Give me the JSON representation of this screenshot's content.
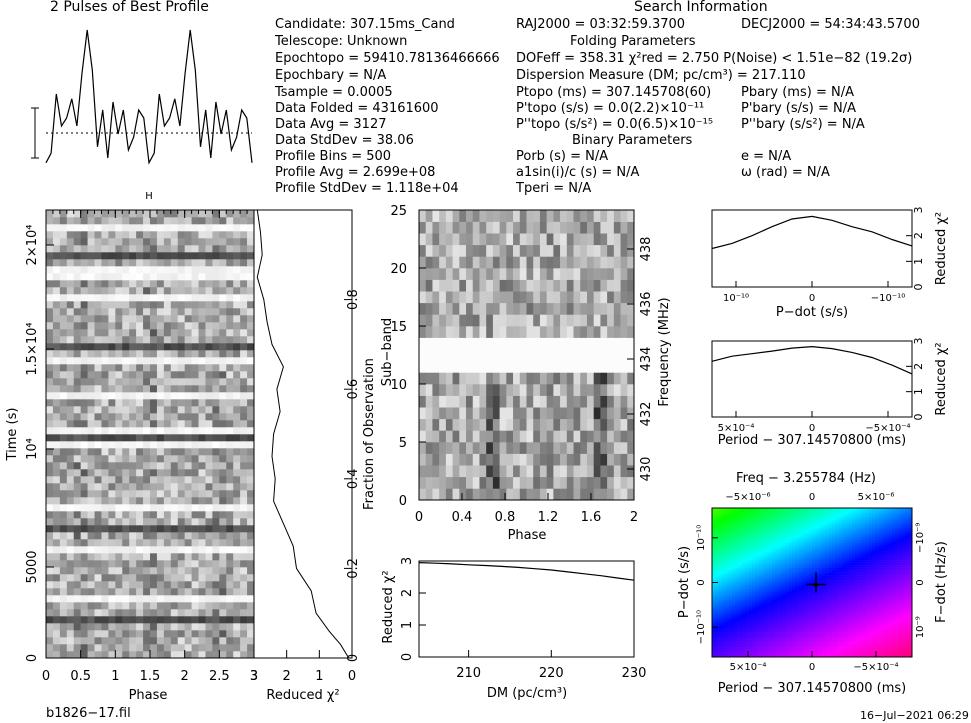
{
  "header": {
    "profile_title": "2 Pulses of Best Profile",
    "search_title": "Search Information"
  },
  "info": {
    "candidate": "Candidate:  307.15ms_Cand",
    "telescope": "Telescope:  Unknown",
    "epoch_topo": "Epochtopo = 59410.78136466666",
    "epoch_bary": "Epochbary = N/A",
    "tsample": "Tsample       =  0.0005",
    "data_folded": "Data Folded   =  43161600",
    "data_avg": "Data Avg      =  3127",
    "data_stddev": "Data StdDev   =  38.06",
    "profile_bins": "Profile Bins  =  500",
    "profile_avg": "Profile Avg   =  2.699e+08",
    "profile_stddev": "Profile StdDev =  1.118e+04",
    "ra": "RAJ2000 = 03:32:59.3700",
    "dec": "DECJ2000 = 54:34:43.5700",
    "folding_title": "Folding Parameters",
    "dof_line": "DOFeff = 358.31  χ²red = 2.750  P(Noise) < 1.51e−82  (19.2σ)",
    "dm_line": "Dispersion Measure (DM; pc/cm³) = 217.110",
    "ptopo": "Ptopo (ms)  =  307.145708(60)",
    "pdtopo": "P'topo (s/s) = 0.0(2.2)×10⁻¹¹",
    "pddtopo": "P''topo (s/s²) = 0.0(6.5)×10⁻¹⁵",
    "pbary": "Pbary (ms) = N/A",
    "pdbary": "P'bary (s/s) = N/A",
    "pddbary": "P''bary (s/s²) = N/A",
    "binary_title": "Binary Parameters",
    "porb": "Porb (s) = N/A",
    "asini": "a1sin(i)/c (s) = N/A",
    "tperi": "Tperi = N/A",
    "ecc": "e = N/A",
    "omega": "ω (rad) = N/A"
  },
  "footer": {
    "filename": "b1826−17.fil",
    "date": "16−Jul−2021 06:29"
  },
  "chart_data": [
    {
      "type": "line",
      "name": "profile",
      "title": "2 Pulses of Best Profile",
      "xlabel": "",
      "ylabel": "",
      "x": [
        0,
        0.05,
        0.1,
        0.15,
        0.2,
        0.25,
        0.3,
        0.35,
        0.4,
        0.45,
        0.5,
        0.55,
        0.6,
        0.65,
        0.7,
        0.75,
        0.8,
        0.85,
        0.9,
        0.95,
        1.0,
        1.05,
        1.1,
        1.15,
        1.2,
        1.25,
        1.3,
        1.35,
        1.4,
        1.45,
        1.5,
        1.55,
        1.6,
        1.65,
        1.7,
        1.75,
        1.8,
        1.85,
        1.9,
        1.95,
        2.0
      ],
      "values": [
        0.12,
        0.18,
        0.55,
        0.35,
        0.4,
        0.52,
        0.35,
        0.68,
        0.95,
        0.7,
        0.22,
        0.45,
        0.15,
        0.5,
        0.3,
        0.45,
        0.2,
        0.28,
        0.45,
        0.4,
        0.12,
        0.18,
        0.55,
        0.35,
        0.4,
        0.52,
        0.35,
        0.68,
        0.95,
        0.7,
        0.22,
        0.45,
        0.15,
        0.5,
        0.3,
        0.45,
        0.2,
        0.28,
        0.45,
        0.4,
        0.12
      ]
    },
    {
      "type": "heatmap",
      "name": "time-phase",
      "xlabel": "Phase",
      "ylabel": "Time (s)",
      "xlim": [
        0,
        3
      ],
      "x_ticks": [
        "0",
        "0.5",
        "1",
        "1.5",
        "2",
        "2.5",
        "3"
      ],
      "y_ticks": [
        "0",
        "5000",
        "10⁴",
        "1.5×10⁴",
        "2×10⁴"
      ],
      "y_tick_values": [
        0,
        5000,
        10000,
        15000,
        20000
      ],
      "ylim": [
        0,
        22500
      ],
      "bright_rows_frac": [
        0.12,
        0.24,
        0.33,
        0.47,
        0.5,
        0.58,
        0.65,
        0.8,
        0.85,
        0.86,
        0.95
      ]
    },
    {
      "type": "line",
      "name": "time-reduced-chi2",
      "xlabel": "Reduced χ²",
      "ylabel": "Fraction of Observation",
      "xlim": [
        3,
        0
      ],
      "x_ticks": [
        "3",
        "2",
        "1",
        "0"
      ],
      "y_ticks": [
        "0",
        "0.2",
        "0.4",
        "0.6",
        "0.8"
      ],
      "fraction": [
        0,
        0.03,
        0.06,
        0.1,
        0.15,
        0.2,
        0.25,
        0.3,
        0.35,
        0.4,
        0.45,
        0.5,
        0.55,
        0.6,
        0.65,
        0.7,
        0.75,
        0.8,
        0.85,
        0.9,
        0.95,
        1.0
      ],
      "chi2": [
        0.1,
        0.35,
        0.7,
        1.1,
        1.25,
        1.7,
        1.8,
        2.1,
        2.4,
        2.35,
        2.45,
        2.4,
        2.2,
        2.3,
        2.1,
        2.45,
        2.6,
        2.7,
        2.9,
        2.75,
        2.8,
        2.9
      ]
    },
    {
      "type": "heatmap",
      "name": "subband-phase",
      "xlabel": "Phase",
      "ylabel": "Sub−band",
      "y2label": "Frequency (MHz)",
      "xlim": [
        0,
        2
      ],
      "ylim": [
        0,
        25
      ],
      "x_ticks": [
        "0",
        "0.4",
        "0.8",
        "1.2",
        "1.6",
        "2"
      ],
      "y_ticks": [
        "0",
        "5",
        "10",
        "15",
        "20",
        "25"
      ],
      "y2_ticks": [
        "430",
        "432",
        "434",
        "436",
        "438"
      ],
      "blank_band": [
        11,
        13.7
      ]
    },
    {
      "type": "line",
      "name": "dm-reduced-chi2",
      "xlabel": "DM (pc/cm³)",
      "ylabel": "Reduced χ²",
      "xlim": [
        204,
        230
      ],
      "ylim": [
        0,
        3
      ],
      "x_ticks": [
        "210",
        "220",
        "230"
      ],
      "y_ticks": [
        "0",
        "1",
        "2",
        "3"
      ],
      "x": [
        204,
        206,
        208,
        210,
        212,
        214,
        216,
        218,
        220,
        222,
        224,
        226,
        228,
        230
      ],
      "values": [
        2.95,
        2.93,
        2.91,
        2.88,
        2.86,
        2.83,
        2.8,
        2.76,
        2.72,
        2.66,
        2.6,
        2.54,
        2.47,
        2.4
      ]
    },
    {
      "type": "line",
      "name": "pdot-reduced-chi2",
      "xlabel": "P−dot (s/s)",
      "ylabel": "Reduced χ²",
      "ylim": [
        0,
        3
      ],
      "x_ticks": [
        "10⁻¹⁰",
        "0",
        "−10⁻¹⁰"
      ],
      "y_ticks": [
        "0",
        "1",
        "2",
        "3"
      ],
      "x": [
        0,
        0.1,
        0.2,
        0.3,
        0.4,
        0.5,
        0.6,
        0.7,
        0.8,
        0.9,
        1.0
      ],
      "values": [
        1.5,
        1.7,
        2.0,
        2.35,
        2.65,
        2.75,
        2.6,
        2.35,
        2.15,
        1.85,
        1.6
      ]
    },
    {
      "type": "line",
      "name": "period-reduced-chi2",
      "xlabel": "Period − 307.14570800 (ms)",
      "ylabel": "Reduced χ²",
      "ylim": [
        0,
        3
      ],
      "x_ticks": [
        "5×10⁻⁴",
        "0",
        "−5×10⁻⁴"
      ],
      "y_ticks": [
        "0",
        "1",
        "2",
        "3"
      ],
      "x": [
        0,
        0.1,
        0.2,
        0.3,
        0.4,
        0.5,
        0.6,
        0.7,
        0.8,
        0.9,
        1.0
      ],
      "values": [
        2.2,
        2.4,
        2.5,
        2.6,
        2.72,
        2.78,
        2.7,
        2.55,
        2.35,
        2.05,
        1.7
      ]
    },
    {
      "type": "heatmap",
      "name": "period-pdot-plane",
      "title": "Freq − 3.255784 (Hz)",
      "xlabel": "Period − 307.14570800 (ms)",
      "ylabel": "P−dot (s/s)",
      "y2label": "F−dot (Hz/s)",
      "top_ticks": [
        "−5×10⁻⁶",
        "0",
        "5×10⁻⁶"
      ],
      "x_ticks": [
        "5×10⁻⁴",
        "0",
        "−5×10⁻⁴"
      ],
      "y_ticks": [
        "10⁻¹⁰",
        "0",
        "−10⁻¹⁰"
      ],
      "y2_ticks": [
        "−10⁻⁹",
        "0",
        "10⁻⁹"
      ],
      "best": {
        "x": 0,
        "y": 0
      }
    }
  ]
}
